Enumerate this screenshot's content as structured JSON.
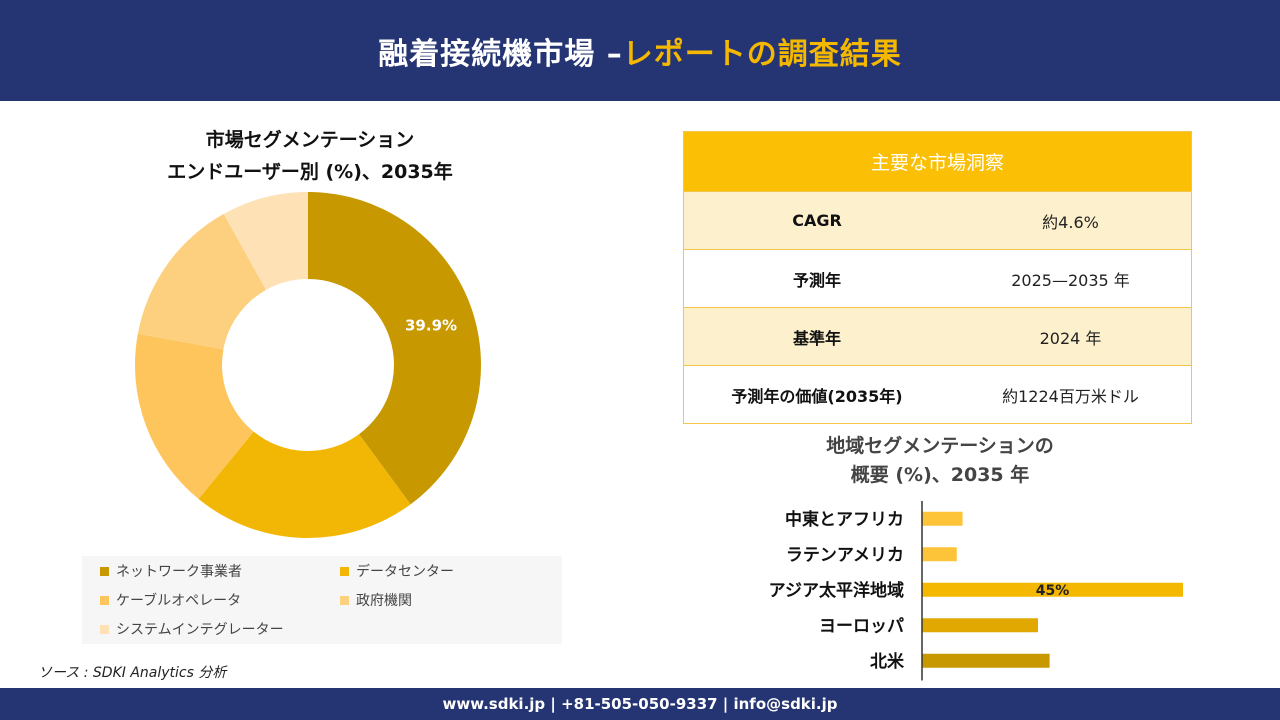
{
  "header": {
    "title_main": "融着接続機市場 –",
    "title_accent": "レポートの調査結果"
  },
  "footer": {
    "contact": "www.sdki.jp | +81-505-050-9337 | info@sdki.jp"
  },
  "source": "ソース : SDKI Analytics 分析",
  "insights": {
    "heading": "主要な市場洞察",
    "rows": [
      {
        "label": "CAGR",
        "value": "約4.6%"
      },
      {
        "label": "予測年",
        "value": "2025—2035 年"
      },
      {
        "label": "基準年",
        "value": "2024 年"
      },
      {
        "label": "予測年の価値(2035年)",
        "value": "約1224百万米ドル"
      }
    ]
  },
  "chart_data": [
    {
      "type": "pie",
      "title_line1": "市場セグメンテーション",
      "title_line2": "エンドユーザー別 (%)、2035年",
      "categories": [
        "ネットワーク事業者",
        "データセンター",
        "ケーブルオペレータ",
        "政府機関",
        "システムインテグレーター"
      ],
      "values": [
        39.9,
        21.0,
        17.0,
        14.0,
        8.1
      ],
      "colors": [
        "#c89800",
        "#f2b705",
        "#fdc55c",
        "#fdd080",
        "#fee2b6"
      ],
      "data_labels": [
        "39.9%",
        "",
        "",
        "",
        ""
      ],
      "legend_position": "bottom"
    },
    {
      "type": "bar",
      "orientation": "horizontal",
      "title_line1": "地域セグメンテーションの",
      "title_line2": "概要 (%)、2035 年",
      "categories": [
        "中東とアフリカ",
        "ラテンアメリカ",
        "アジア太平洋地域",
        "ヨーロッパ",
        "北米"
      ],
      "values": [
        7,
        6,
        45,
        20,
        22
      ],
      "colors": [
        "#fdc43a",
        "#fdc43a",
        "#f5b800",
        "#e0a800",
        "#c89800"
      ],
      "data_labels": [
        "",
        "",
        "45%",
        "",
        ""
      ],
      "xlim": [
        0,
        50
      ]
    }
  ]
}
